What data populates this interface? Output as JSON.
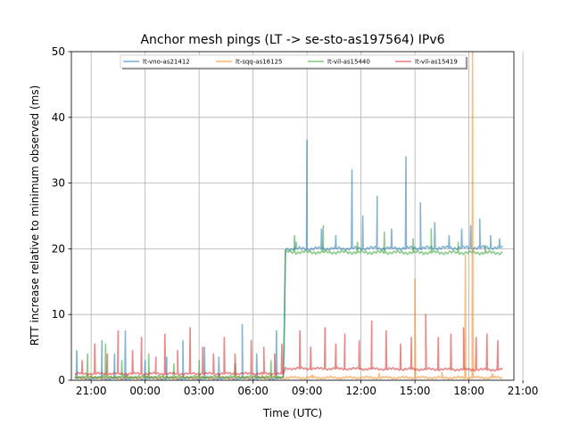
{
  "chart_data": {
    "type": "line",
    "title": "Anchor mesh pings (LT -> se-sto-as197564) IPv6",
    "xlabel": "Time (UTC)",
    "ylabel": "RTT increase relative to minimum observed (ms)",
    "xlim": [
      -1.1,
      23.5
    ],
    "ylim": [
      0,
      50
    ],
    "x_unit": "hours since 21:00 UTC",
    "xticks": [
      {
        "value": 0,
        "label": "21:00"
      },
      {
        "value": 3,
        "label": "00:00"
      },
      {
        "value": 6,
        "label": "03:00"
      },
      {
        "value": 9,
        "label": "06:00"
      },
      {
        "value": 12,
        "label": "09:00"
      },
      {
        "value": 15,
        "label": "12:00"
      },
      {
        "value": 18,
        "label": "15:00"
      },
      {
        "value": 21,
        "label": "18:00"
      },
      {
        "value": 24,
        "label": "21:00"
      }
    ],
    "yticks": [
      0,
      10,
      20,
      30,
      40,
      50
    ],
    "grid": true,
    "legend_position": "top-center",
    "series": [
      {
        "name": "lt-vno-as21412",
        "color": "#1f77b4",
        "baseline": [
          [
            -0.9,
            0.3
          ],
          [
            10.7,
            0.3
          ],
          [
            10.8,
            20.0
          ],
          [
            22.9,
            20.2
          ]
        ],
        "spikes": [
          [
            -0.8,
            4.5
          ],
          [
            0.6,
            6.0
          ],
          [
            1.3,
            4.0
          ],
          [
            1.9,
            7.5
          ],
          [
            3.0,
            3.0
          ],
          [
            4.2,
            3.5
          ],
          [
            5.1,
            6.0
          ],
          [
            6.3,
            5.0
          ],
          [
            7.1,
            3.5
          ],
          [
            8.4,
            8.5
          ],
          [
            9.2,
            4.0
          ],
          [
            10.3,
            7.5
          ],
          [
            11.4,
            21.0
          ],
          [
            12.0,
            36.5
          ],
          [
            12.8,
            23.0
          ],
          [
            13.6,
            22.0
          ],
          [
            14.5,
            32.0
          ],
          [
            15.1,
            25.0
          ],
          [
            15.9,
            28.0
          ],
          [
            16.7,
            23.0
          ],
          [
            17.5,
            34.0
          ],
          [
            18.3,
            27.0
          ],
          [
            19.1,
            24.0
          ],
          [
            19.9,
            22.0
          ],
          [
            20.6,
            23.0
          ],
          [
            21.1,
            23.5
          ],
          [
            21.6,
            24.5
          ],
          [
            22.2,
            22.0
          ],
          [
            22.7,
            21.5
          ]
        ]
      },
      {
        "name": "lt-sqq-as16125",
        "color": "#ff7f0e",
        "baseline": [
          [
            -0.9,
            0.4
          ],
          [
            22.9,
            0.4
          ]
        ],
        "spikes": [
          [
            2.0,
            0.9
          ],
          [
            9.5,
            1.0
          ],
          [
            12.3,
            0.8
          ],
          [
            16.0,
            1.0
          ],
          [
            18.0,
            15.4
          ],
          [
            19.5,
            1.2
          ],
          [
            20.8,
            19.0
          ],
          [
            21.2,
            50.0
          ],
          [
            22.3,
            1.0
          ]
        ]
      },
      {
        "name": "lt-vil-as15440",
        "color": "#2ca02c",
        "baseline": [
          [
            -0.9,
            0.5
          ],
          [
            10.7,
            0.5
          ],
          [
            10.8,
            19.5
          ],
          [
            22.9,
            19.4
          ]
        ],
        "spikes": [
          [
            -0.2,
            4.0
          ],
          [
            0.8,
            5.5
          ],
          [
            1.7,
            3.0
          ],
          [
            3.2,
            4.0
          ],
          [
            4.6,
            2.5
          ],
          [
            6.0,
            3.0
          ],
          [
            8.0,
            2.5
          ],
          [
            10.0,
            3.0
          ],
          [
            11.3,
            22.0
          ],
          [
            12.9,
            23.5
          ],
          [
            14.8,
            21.0
          ],
          [
            16.3,
            22.5
          ],
          [
            17.9,
            21.5
          ],
          [
            18.9,
            23.0
          ],
          [
            20.4,
            21.0
          ],
          [
            21.9,
            20.5
          ]
        ]
      },
      {
        "name": "lt-vil-as15419",
        "color": "#d62728",
        "baseline": [
          [
            -0.9,
            1.0
          ],
          [
            10.7,
            1.0
          ],
          [
            10.8,
            1.8
          ],
          [
            22.9,
            1.6
          ]
        ],
        "spikes": [
          [
            -0.5,
            3.0
          ],
          [
            0.2,
            5.5
          ],
          [
            0.9,
            4.0
          ],
          [
            1.5,
            7.5
          ],
          [
            2.3,
            4.5
          ],
          [
            2.8,
            6.5
          ],
          [
            3.6,
            3.5
          ],
          [
            4.1,
            7.0
          ],
          [
            4.8,
            4.5
          ],
          [
            5.5,
            8.0
          ],
          [
            6.2,
            5.0
          ],
          [
            6.8,
            4.0
          ],
          [
            7.4,
            6.5
          ],
          [
            8.0,
            4.0
          ],
          [
            8.9,
            6.0
          ],
          [
            9.6,
            5.0
          ],
          [
            10.2,
            4.0
          ],
          [
            10.6,
            5.5
          ],
          [
            11.6,
            7.5
          ],
          [
            12.2,
            5.0
          ],
          [
            13.0,
            8.0
          ],
          [
            13.6,
            5.5
          ],
          [
            14.1,
            7.0
          ],
          [
            14.9,
            6.0
          ],
          [
            15.6,
            9.0
          ],
          [
            16.4,
            7.5
          ],
          [
            17.2,
            5.5
          ],
          [
            17.8,
            6.5
          ],
          [
            18.6,
            10.0
          ],
          [
            19.3,
            6.5
          ],
          [
            20.0,
            7.0
          ],
          [
            20.7,
            8.0
          ],
          [
            21.4,
            6.5
          ],
          [
            22.0,
            7.0
          ],
          [
            22.6,
            6.0
          ]
        ]
      }
    ]
  }
}
